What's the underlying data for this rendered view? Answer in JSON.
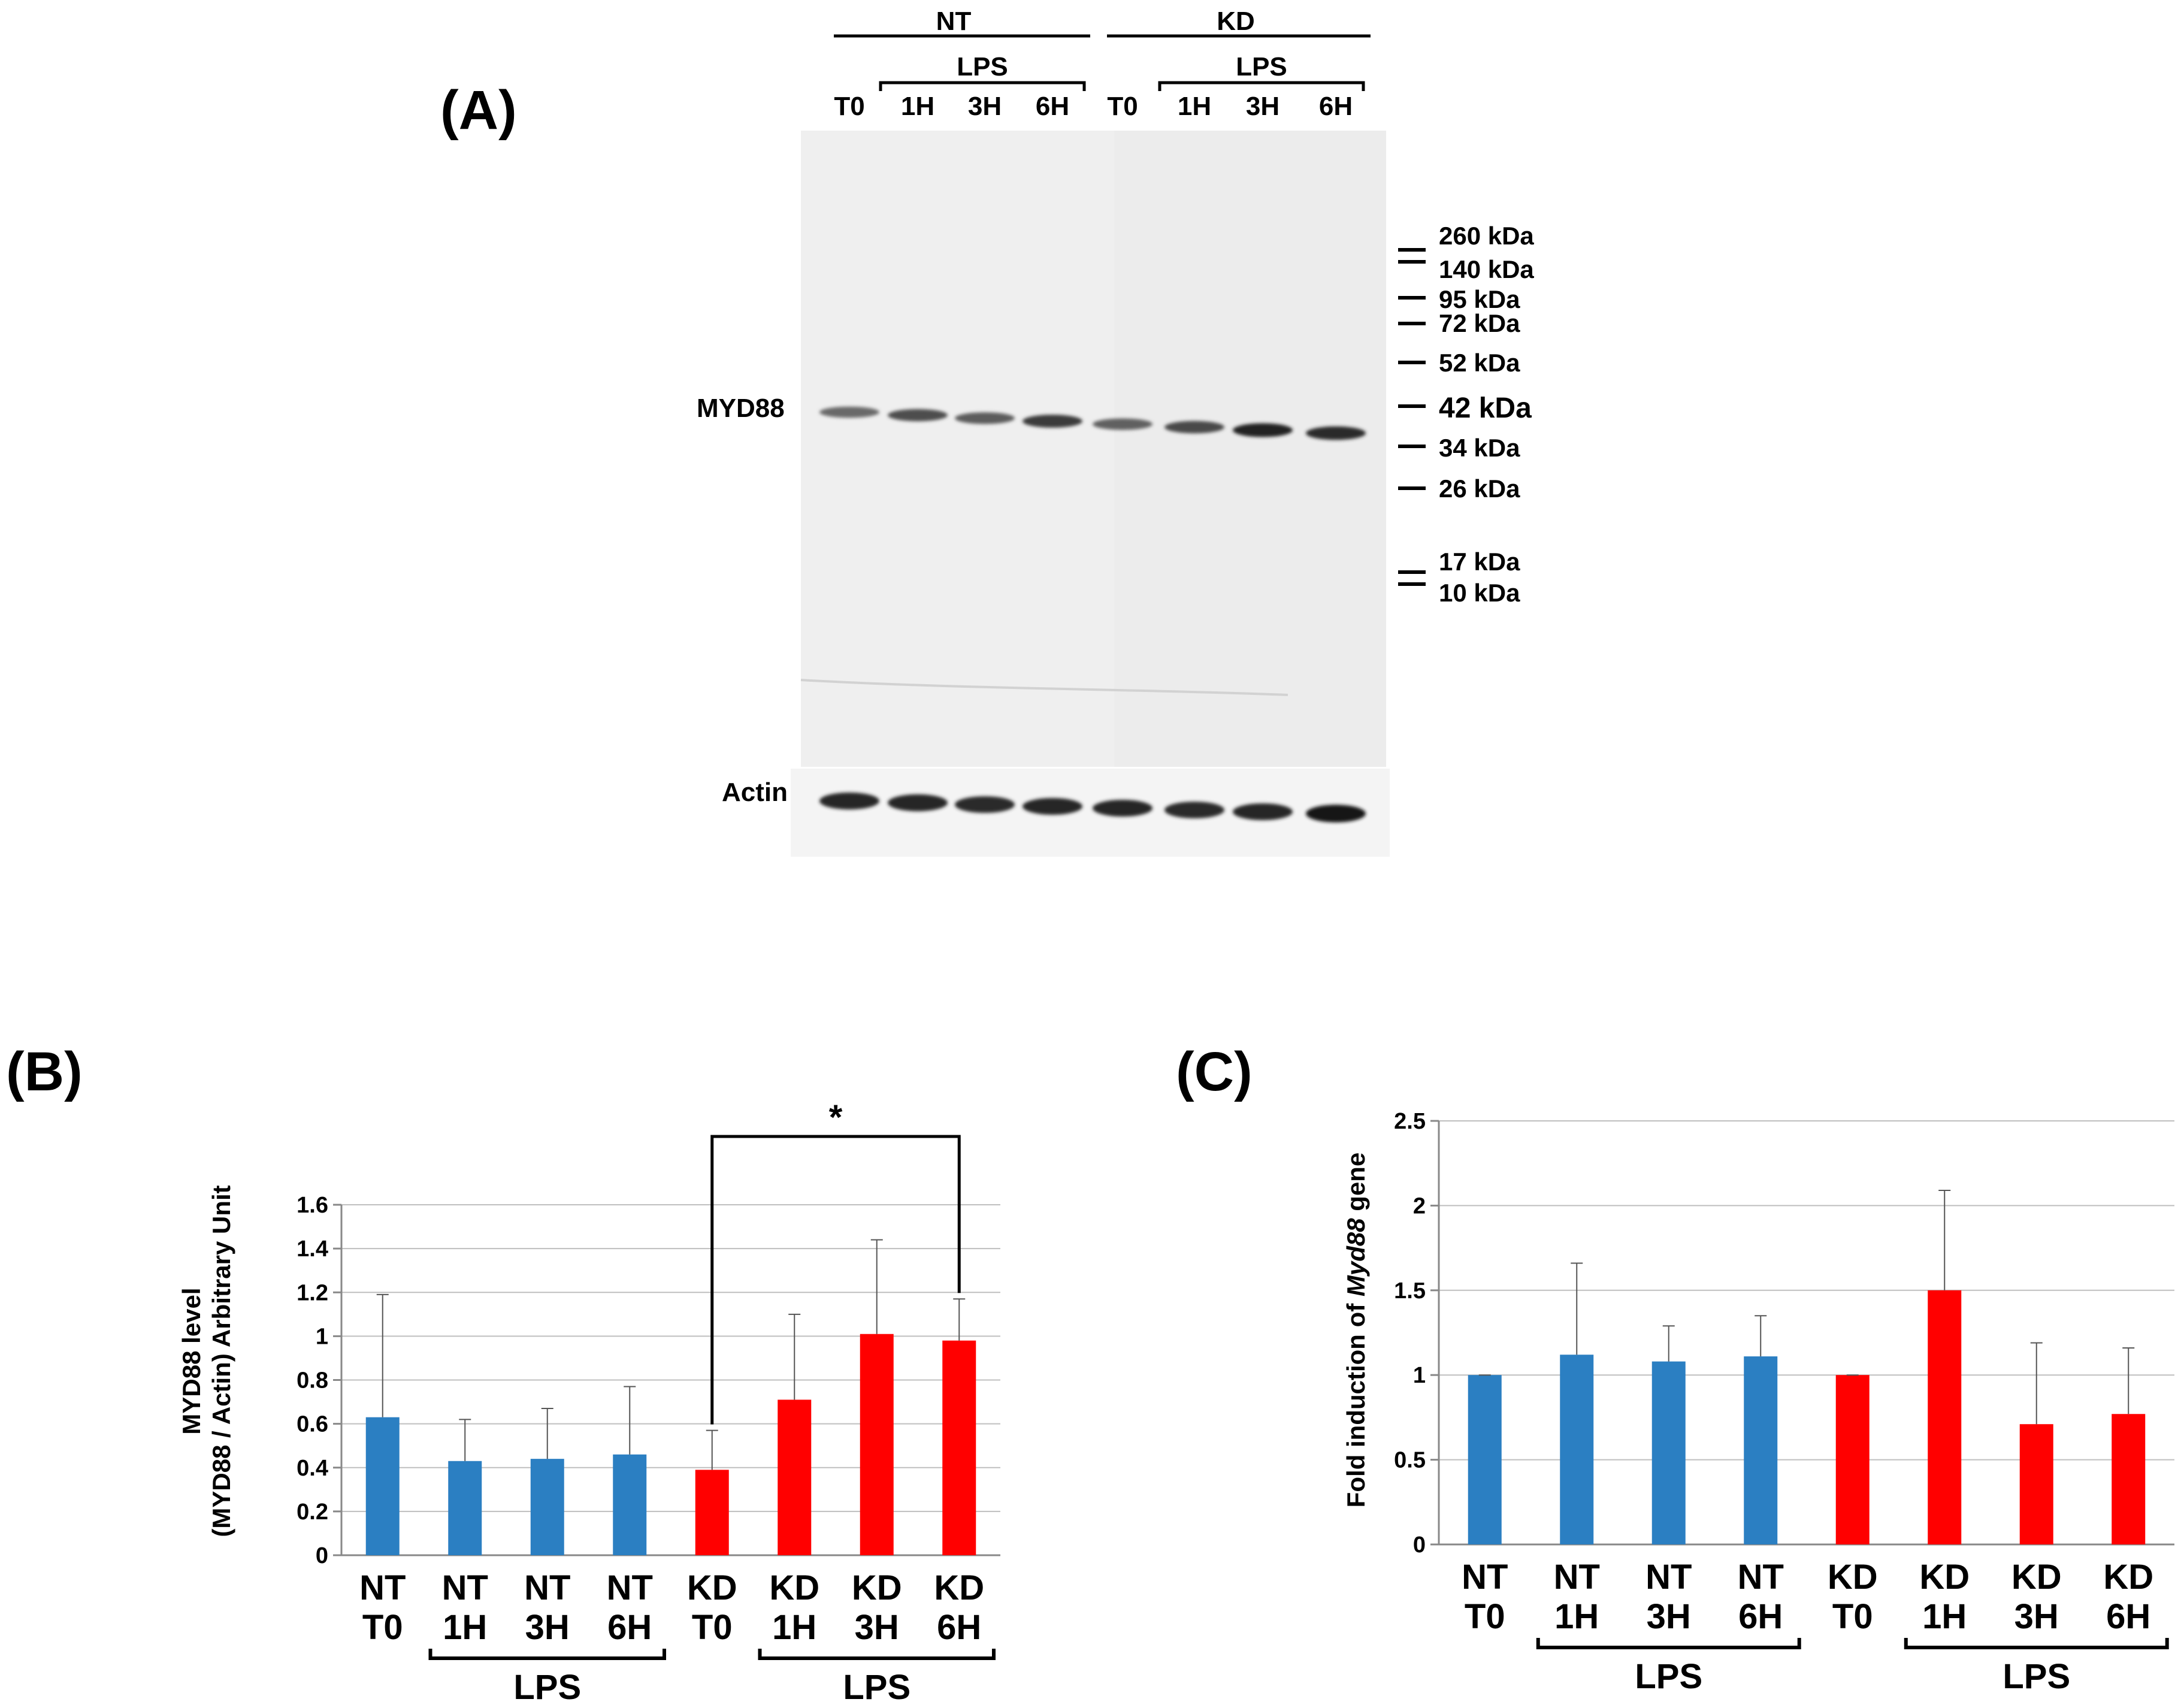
{
  "colors": {
    "nt": "#2B7FC2",
    "kd": "#FF0000",
    "axis": "#888888",
    "grid": "#BFBFBF",
    "text": "#000000"
  },
  "panel_a": {
    "label": "(A)",
    "group_nt": "NT",
    "group_kd": "KD",
    "lps": "LPS",
    "lanes": [
      "T0",
      "1H",
      "3H",
      "6H",
      "T0",
      "1H",
      "3H",
      "6H"
    ],
    "band_label": "MYD88",
    "control_label": "Actin",
    "markers": [
      "260 kDa",
      "140 kDa",
      "95 kDa",
      "72 kDa",
      "52 kDa",
      "42 kDa",
      "34 kDa",
      "26 kDa",
      "17 kDa",
      "10 kDa"
    ],
    "myd88_intensity": [
      0.55,
      0.7,
      0.62,
      0.8,
      0.6,
      0.72,
      0.92,
      0.88
    ],
    "actin_intensity": [
      0.85,
      0.85,
      0.82,
      0.84,
      0.84,
      0.82,
      0.84,
      0.95
    ]
  },
  "chart_data": [
    {
      "type": "bar",
      "panel": "(B)",
      "title": "",
      "ylabel_line1": "MYD88 level",
      "ylabel_line2": "(MYD88 / Actin) Arbitrary  Unit",
      "categories": [
        [
          "NT",
          "T0"
        ],
        [
          "NT",
          "1H"
        ],
        [
          "NT",
          "3H"
        ],
        [
          "NT",
          "6H"
        ],
        [
          "KD",
          "T0"
        ],
        [
          "KD",
          "1H"
        ],
        [
          "KD",
          "3H"
        ],
        [
          "KD",
          "6H"
        ]
      ],
      "values": [
        0.63,
        0.43,
        0.44,
        0.46,
        0.39,
        0.71,
        1.01,
        0.98
      ],
      "errors": [
        0.56,
        0.19,
        0.23,
        0.31,
        0.18,
        0.39,
        0.43,
        0.19
      ],
      "groups": [
        "NT",
        "NT",
        "NT",
        "NT",
        "KD",
        "KD",
        "KD",
        "KD"
      ],
      "ylim": [
        0,
        1.6
      ],
      "yticks": [
        "0",
        "0.2",
        "0.4",
        "0.6",
        "0.8",
        "1",
        "1.2",
        "1.4",
        "1.6"
      ],
      "grid": true,
      "lps_label": "LPS",
      "significance": {
        "from_index": 4,
        "to_index": 7,
        "label": "*"
      }
    },
    {
      "type": "bar",
      "panel": "(C)",
      "title": "",
      "ylabel_prefix": "Fold induction of ",
      "ylabel_gene": "Myd88",
      "ylabel_suffix": " gene",
      "categories": [
        [
          "NT",
          "T0"
        ],
        [
          "NT",
          "1H"
        ],
        [
          "NT",
          "3H"
        ],
        [
          "NT",
          "6H"
        ],
        [
          "KD",
          "T0"
        ],
        [
          "KD",
          "1H"
        ],
        [
          "KD",
          "3H"
        ],
        [
          "KD",
          "6H"
        ]
      ],
      "values": [
        1.0,
        1.12,
        1.08,
        1.11,
        1.0,
        1.5,
        0.71,
        0.77
      ],
      "errors": [
        0.0,
        0.54,
        0.21,
        0.24,
        0.0,
        0.59,
        0.48,
        0.39
      ],
      "groups": [
        "NT",
        "NT",
        "NT",
        "NT",
        "KD",
        "KD",
        "KD",
        "KD"
      ],
      "ylim": [
        0,
        2.5
      ],
      "yticks": [
        "0",
        "0.5",
        "1",
        "1.5",
        "2",
        "2.5"
      ],
      "grid": true,
      "lps_label": "LPS"
    }
  ]
}
